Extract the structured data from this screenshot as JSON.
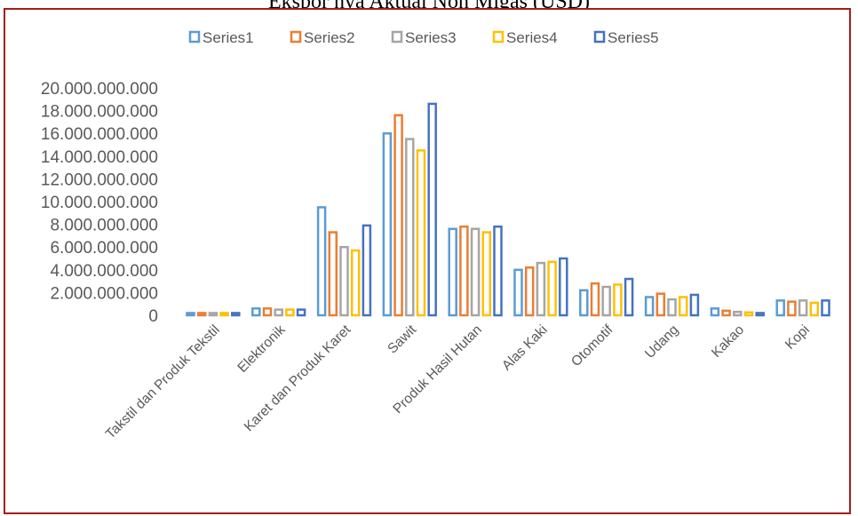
{
  "chart_data": {
    "type": "bar",
    "title": "Ekspor nya Aktual Non Migas (USD)",
    "categories": [
      "Takstil dan Produk Tekstil",
      "Elektronik",
      "Karet dan Produk Karet",
      "Sawit",
      "Produk Hasil Hutan",
      "Alas Kaki",
      "Otomotif",
      "Udang",
      "Kakao",
      "Kopi"
    ],
    "series": [
      {
        "name": "Series1",
        "color": "#5B9BD5",
        "values": [
          200000000,
          600000000,
          9500000000,
          16000000000,
          7600000000,
          4000000000,
          2200000000,
          1600000000,
          600000000,
          1300000000
        ]
      },
      {
        "name": "Series2",
        "color": "#ED7D31",
        "values": [
          200000000,
          600000000,
          7300000000,
          17600000000,
          7800000000,
          4200000000,
          2800000000,
          1900000000,
          400000000,
          1200000000
        ]
      },
      {
        "name": "Series3",
        "color": "#A5A5A5",
        "values": [
          200000000,
          500000000,
          6000000000,
          15500000000,
          7600000000,
          4600000000,
          2500000000,
          1400000000,
          300000000,
          1300000000
        ]
      },
      {
        "name": "Series4",
        "color": "#FFC000",
        "values": [
          200000000,
          500000000,
          5700000000,
          14500000000,
          7300000000,
          4700000000,
          2700000000,
          1600000000,
          250000000,
          1100000000
        ]
      },
      {
        "name": "Series5",
        "color": "#4472C4",
        "values": [
          200000000,
          500000000,
          7900000000,
          18600000000,
          7800000000,
          5000000000,
          3200000000,
          1800000000,
          200000000,
          1300000000
        ]
      }
    ],
    "ylim": [
      0,
      20000000000
    ],
    "y_ticks": [
      "0",
      "2.000.000.000",
      "4.000.000.000",
      "6.000.000.000",
      "8.000.000.000",
      "10.000.000.000",
      "12.000.000.000",
      "14.000.000.000",
      "16.000.000.000",
      "18.000.000.000",
      "20.000.000.000"
    ],
    "legend_position": "top",
    "grid": false
  }
}
